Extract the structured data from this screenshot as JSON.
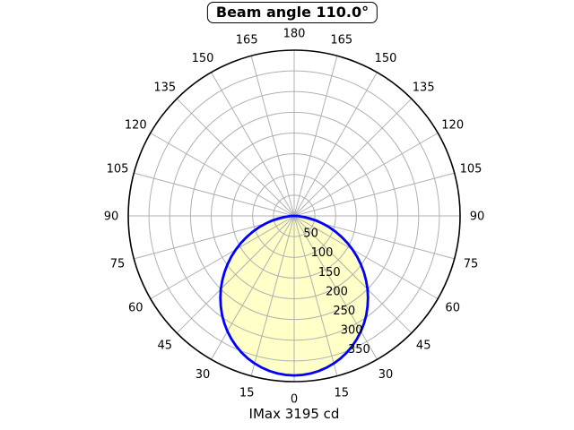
{
  "header": {
    "title": "Beam angle 110.0°"
  },
  "footer": {
    "caption": "IMax 3195 cd"
  },
  "chart_data": {
    "type": "polar",
    "title": "Beam angle 110.0°",
    "imax_label": "IMax 3195 cd",
    "imax_cd": 3195,
    "beam_angle_deg": 110.0,
    "angle_convention": "0 deg at bottom, increasing to 180 deg at top, mirrored on both sides",
    "angle_ticks_deg": [
      0,
      15,
      30,
      45,
      60,
      75,
      90,
      105,
      120,
      135,
      150,
      165,
      180
    ],
    "angle_grid_step_deg": 15,
    "radial_ticks": [
      50,
      100,
      150,
      200,
      250,
      300,
      350
    ],
    "radial_max": 400,
    "rlabel_angle_deg": 21,
    "grid": true,
    "curve": {
      "description": "luminous intensity distribution, symmetric about 0 deg; half intensity at ±55 deg (beam angle 110 deg)",
      "angles_deg": [
        0,
        3,
        6,
        9,
        12,
        15,
        18,
        21,
        24,
        27,
        30,
        33,
        36,
        39,
        42,
        45,
        48,
        51,
        54,
        57,
        60,
        63,
        66,
        69,
        72,
        75,
        78,
        81,
        84,
        87,
        90
      ],
      "values": [
        385.0,
        384.3,
        382.4,
        379.1,
        374.5,
        368.7,
        361.7,
        353.4,
        344.0,
        333.4,
        321.8,
        309.2,
        295.6,
        281.2,
        265.9,
        250.0,
        233.4,
        216.2,
        198.6,
        180.6,
        162.3,
        144.0,
        125.5,
        107.2,
        89.1,
        71.5,
        54.4,
        38.2,
        23.1,
        9.8,
        0.0
      ]
    },
    "colors": {
      "curve": "#0000ff",
      "fill": "#ffffc8",
      "grid": "#b0b0b0",
      "axis": "#000000",
      "background": "#ffffff"
    }
  }
}
